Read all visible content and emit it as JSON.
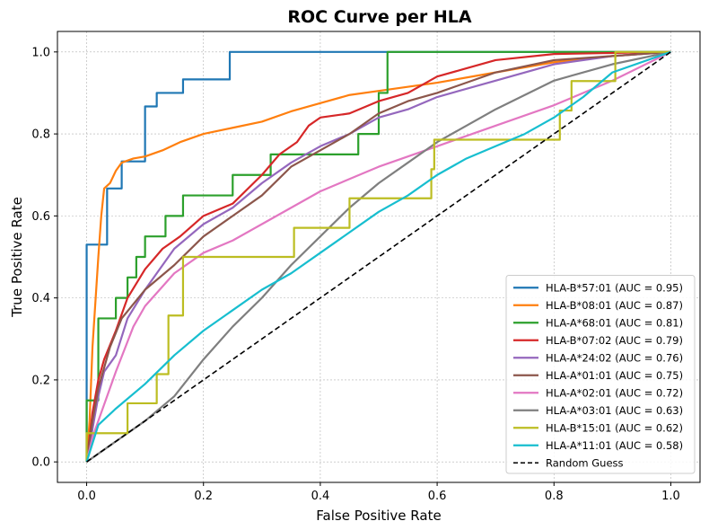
{
  "chart_data": {
    "type": "line",
    "title": "ROC Curve per HLA",
    "xlabel": "False Positive Rate",
    "ylabel": "True Positive Rate",
    "xlim": [
      -0.05,
      1.05
    ],
    "ylim": [
      -0.05,
      1.05
    ],
    "xticks": [
      0.0,
      0.2,
      0.4,
      0.6,
      0.8,
      1.0
    ],
    "yticks": [
      0.0,
      0.2,
      0.4,
      0.6,
      0.8,
      1.0
    ],
    "xtick_labels": [
      "0.0",
      "0.2",
      "0.4",
      "0.6",
      "0.8",
      "1.0"
    ],
    "ytick_labels": [
      "0.0",
      "0.2",
      "0.4",
      "0.6",
      "0.8",
      "1.0"
    ],
    "grid": true,
    "legend_position": "bottom-right",
    "series": [
      {
        "name": "HLA-B*57:01 (AUC = 0.95)",
        "color": "#1f77b4",
        "step": true,
        "points": [
          [
            0,
            0
          ],
          [
            0,
            0.53
          ],
          [
            0.035,
            0.53
          ],
          [
            0.035,
            0.667
          ],
          [
            0.06,
            0.667
          ],
          [
            0.06,
            0.733
          ],
          [
            0.1,
            0.733
          ],
          [
            0.1,
            0.867
          ],
          [
            0.12,
            0.867
          ],
          [
            0.12,
            0.9
          ],
          [
            0.165,
            0.9
          ],
          [
            0.165,
            0.933
          ],
          [
            0.245,
            0.933
          ],
          [
            0.245,
            1.0
          ],
          [
            1.0,
            1.0
          ]
        ]
      },
      {
        "name": "HLA-B*08:01 (AUC = 0.87)",
        "color": "#ff7f0e",
        "step": false,
        "points": [
          [
            0,
            0
          ],
          [
            0.005,
            0.1
          ],
          [
            0.01,
            0.28
          ],
          [
            0.02,
            0.5
          ],
          [
            0.025,
            0.6
          ],
          [
            0.03,
            0.667
          ],
          [
            0.04,
            0.68
          ],
          [
            0.05,
            0.71
          ],
          [
            0.06,
            0.73
          ],
          [
            0.08,
            0.74
          ],
          [
            0.1,
            0.745
          ],
          [
            0.13,
            0.76
          ],
          [
            0.16,
            0.78
          ],
          [
            0.2,
            0.8
          ],
          [
            0.25,
            0.815
          ],
          [
            0.3,
            0.83
          ],
          [
            0.35,
            0.855
          ],
          [
            0.4,
            0.875
          ],
          [
            0.45,
            0.895
          ],
          [
            0.5,
            0.905
          ],
          [
            0.6,
            0.925
          ],
          [
            0.7,
            0.95
          ],
          [
            0.8,
            0.975
          ],
          [
            0.9,
            0.99
          ],
          [
            1.0,
            1.0
          ]
        ]
      },
      {
        "name": "HLA-A*68:01 (AUC = 0.81)",
        "color": "#2ca02c",
        "step": true,
        "points": [
          [
            0,
            0
          ],
          [
            0,
            0.15
          ],
          [
            0.02,
            0.15
          ],
          [
            0.02,
            0.35
          ],
          [
            0.05,
            0.35
          ],
          [
            0.05,
            0.4
          ],
          [
            0.07,
            0.4
          ],
          [
            0.07,
            0.45
          ],
          [
            0.085,
            0.45
          ],
          [
            0.085,
            0.5
          ],
          [
            0.1,
            0.5
          ],
          [
            0.1,
            0.55
          ],
          [
            0.135,
            0.55
          ],
          [
            0.135,
            0.6
          ],
          [
            0.165,
            0.6
          ],
          [
            0.165,
            0.65
          ],
          [
            0.25,
            0.65
          ],
          [
            0.25,
            0.7
          ],
          [
            0.315,
            0.7
          ],
          [
            0.315,
            0.75
          ],
          [
            0.465,
            0.75
          ],
          [
            0.465,
            0.8
          ],
          [
            0.5,
            0.8
          ],
          [
            0.5,
            0.9
          ],
          [
            0.515,
            0.9
          ],
          [
            0.515,
            1.0
          ],
          [
            1.0,
            1.0
          ]
        ]
      },
      {
        "name": "HLA-B*07:02 (AUC = 0.79)",
        "color": "#d62728",
        "step": false,
        "points": [
          [
            0,
            0
          ],
          [
            0.01,
            0.12
          ],
          [
            0.02,
            0.2
          ],
          [
            0.03,
            0.25
          ],
          [
            0.05,
            0.32
          ],
          [
            0.07,
            0.4
          ],
          [
            0.1,
            0.47
          ],
          [
            0.13,
            0.52
          ],
          [
            0.16,
            0.55
          ],
          [
            0.2,
            0.6
          ],
          [
            0.25,
            0.63
          ],
          [
            0.3,
            0.7
          ],
          [
            0.33,
            0.75
          ],
          [
            0.36,
            0.78
          ],
          [
            0.38,
            0.82
          ],
          [
            0.4,
            0.84
          ],
          [
            0.45,
            0.85
          ],
          [
            0.5,
            0.88
          ],
          [
            0.55,
            0.9
          ],
          [
            0.6,
            0.94
          ],
          [
            0.65,
            0.96
          ],
          [
            0.7,
            0.98
          ],
          [
            0.8,
            0.995
          ],
          [
            1.0,
            1.0
          ]
        ]
      },
      {
        "name": "HLA-A*24:02 (AUC = 0.76)",
        "color": "#9467bd",
        "step": false,
        "points": [
          [
            0,
            0
          ],
          [
            0.01,
            0.08
          ],
          [
            0.02,
            0.16
          ],
          [
            0.03,
            0.22
          ],
          [
            0.05,
            0.26
          ],
          [
            0.07,
            0.35
          ],
          [
            0.1,
            0.42
          ],
          [
            0.15,
            0.52
          ],
          [
            0.2,
            0.58
          ],
          [
            0.25,
            0.62
          ],
          [
            0.3,
            0.68
          ],
          [
            0.35,
            0.73
          ],
          [
            0.4,
            0.77
          ],
          [
            0.45,
            0.8
          ],
          [
            0.5,
            0.84
          ],
          [
            0.55,
            0.86
          ],
          [
            0.6,
            0.89
          ],
          [
            0.7,
            0.93
          ],
          [
            0.8,
            0.97
          ],
          [
            0.9,
            0.99
          ],
          [
            1.0,
            1.0
          ]
        ]
      },
      {
        "name": "HLA-A*01:01 (AUC = 0.75)",
        "color": "#8c564b",
        "step": false,
        "points": [
          [
            0,
            0
          ],
          [
            0.01,
            0.1
          ],
          [
            0.02,
            0.18
          ],
          [
            0.04,
            0.28
          ],
          [
            0.06,
            0.35
          ],
          [
            0.1,
            0.42
          ],
          [
            0.15,
            0.48
          ],
          [
            0.2,
            0.55
          ],
          [
            0.25,
            0.6
          ],
          [
            0.3,
            0.65
          ],
          [
            0.35,
            0.72
          ],
          [
            0.4,
            0.76
          ],
          [
            0.45,
            0.8
          ],
          [
            0.5,
            0.85
          ],
          [
            0.55,
            0.88
          ],
          [
            0.6,
            0.9
          ],
          [
            0.7,
            0.95
          ],
          [
            0.8,
            0.98
          ],
          [
            0.9,
            0.99
          ],
          [
            1.0,
            1.0
          ]
        ]
      },
      {
        "name": "HLA-A*02:01 (AUC = 0.72)",
        "color": "#e377c2",
        "step": false,
        "points": [
          [
            0,
            0
          ],
          [
            0.01,
            0.06
          ],
          [
            0.03,
            0.14
          ],
          [
            0.05,
            0.22
          ],
          [
            0.08,
            0.33
          ],
          [
            0.1,
            0.38
          ],
          [
            0.15,
            0.46
          ],
          [
            0.2,
            0.51
          ],
          [
            0.25,
            0.54
          ],
          [
            0.3,
            0.58
          ],
          [
            0.35,
            0.62
          ],
          [
            0.4,
            0.66
          ],
          [
            0.45,
            0.69
          ],
          [
            0.5,
            0.72
          ],
          [
            0.6,
            0.77
          ],
          [
            0.7,
            0.82
          ],
          [
            0.8,
            0.87
          ],
          [
            0.9,
            0.93
          ],
          [
            1.0,
            1.0
          ]
        ]
      },
      {
        "name": "HLA-A*03:01 (AUC = 0.63)",
        "color": "#7f7f7f",
        "step": false,
        "points": [
          [
            0,
            0
          ],
          [
            0.05,
            0.05
          ],
          [
            0.1,
            0.1
          ],
          [
            0.15,
            0.16
          ],
          [
            0.2,
            0.25
          ],
          [
            0.25,
            0.33
          ],
          [
            0.3,
            0.4
          ],
          [
            0.35,
            0.48
          ],
          [
            0.4,
            0.55
          ],
          [
            0.45,
            0.62
          ],
          [
            0.5,
            0.68
          ],
          [
            0.55,
            0.73
          ],
          [
            0.6,
            0.78
          ],
          [
            0.7,
            0.86
          ],
          [
            0.8,
            0.93
          ],
          [
            0.9,
            0.97
          ],
          [
            1.0,
            1.0
          ]
        ]
      },
      {
        "name": "HLA-B*15:01 (AUC = 0.62)",
        "color": "#bcbd22",
        "step": true,
        "points": [
          [
            0,
            0
          ],
          [
            0,
            0.07
          ],
          [
            0.07,
            0.07
          ],
          [
            0.07,
            0.143
          ],
          [
            0.12,
            0.143
          ],
          [
            0.12,
            0.214
          ],
          [
            0.14,
            0.214
          ],
          [
            0.14,
            0.357
          ],
          [
            0.165,
            0.357
          ],
          [
            0.165,
            0.5
          ],
          [
            0.355,
            0.5
          ],
          [
            0.355,
            0.571
          ],
          [
            0.45,
            0.571
          ],
          [
            0.45,
            0.643
          ],
          [
            0.59,
            0.643
          ],
          [
            0.59,
            0.714
          ],
          [
            0.595,
            0.714
          ],
          [
            0.595,
            0.786
          ],
          [
            0.81,
            0.786
          ],
          [
            0.81,
            0.857
          ],
          [
            0.83,
            0.857
          ],
          [
            0.83,
            0.929
          ],
          [
            0.905,
            0.929
          ],
          [
            0.905,
            1.0
          ],
          [
            1.0,
            1.0
          ]
        ]
      },
      {
        "name": "HLA-A*11:01 (AUC = 0.58)",
        "color": "#17becf",
        "step": false,
        "points": [
          [
            0,
            0
          ],
          [
            0.02,
            0.09
          ],
          [
            0.05,
            0.13
          ],
          [
            0.1,
            0.19
          ],
          [
            0.15,
            0.26
          ],
          [
            0.2,
            0.32
          ],
          [
            0.25,
            0.37
          ],
          [
            0.3,
            0.42
          ],
          [
            0.35,
            0.46
          ],
          [
            0.4,
            0.51
          ],
          [
            0.45,
            0.56
          ],
          [
            0.5,
            0.61
          ],
          [
            0.55,
            0.65
          ],
          [
            0.6,
            0.7
          ],
          [
            0.65,
            0.74
          ],
          [
            0.7,
            0.77
          ],
          [
            0.75,
            0.8
          ],
          [
            0.8,
            0.84
          ],
          [
            0.85,
            0.89
          ],
          [
            0.9,
            0.95
          ],
          [
            1.0,
            1.0
          ]
        ]
      },
      {
        "name": "Random Guess",
        "color": "#000000",
        "step": false,
        "dashed": true,
        "points": [
          [
            0,
            0
          ],
          [
            1,
            1
          ]
        ]
      }
    ]
  }
}
